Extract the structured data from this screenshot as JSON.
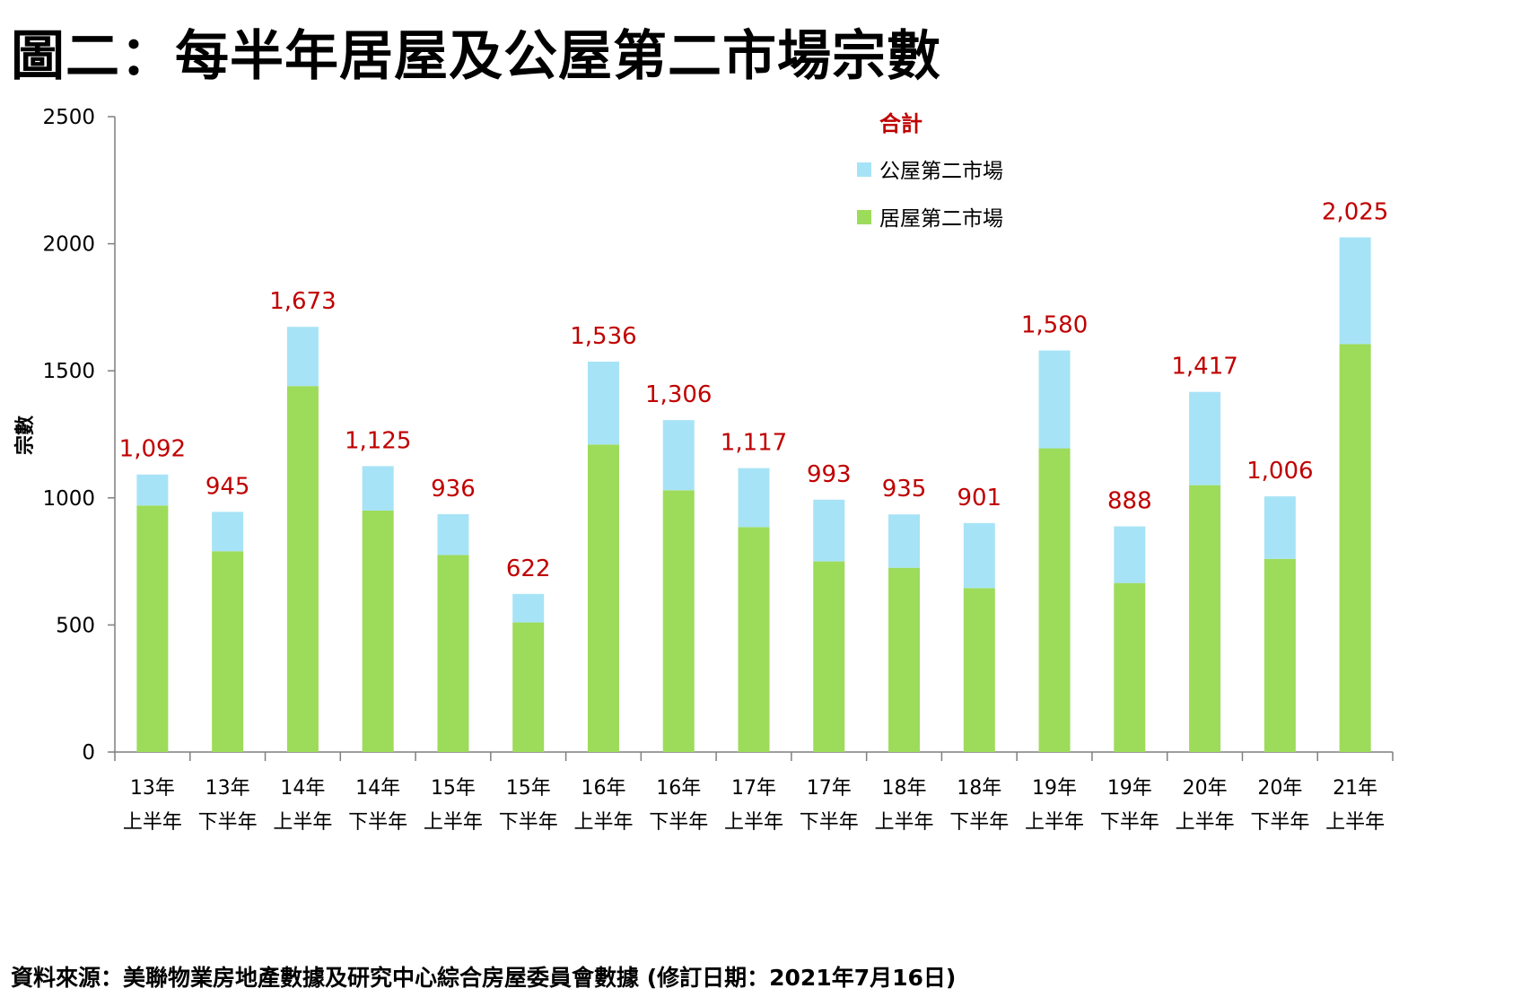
{
  "title": "圖二：每半年居屋及公屋第二市場宗數",
  "source": "資料來源：美聯物業房地產數據及研究中心綜合房屋委員會數據 (修訂日期：2021年7月16日)",
  "colors": {
    "public": "#a7e3f6",
    "hos": "#9ddb5a",
    "total_label": "#c00000",
    "axis": "#7f7f7f"
  },
  "chart_data": {
    "type": "bar",
    "stacked": true,
    "ylabel": "宗數",
    "ylim": [
      0,
      2500
    ],
    "yticks": [
      "0",
      "500",
      "1000",
      "1500",
      "2000",
      "2500"
    ],
    "ytick_values": [
      0,
      500,
      1000,
      1500,
      2000,
      2500
    ],
    "categories": [
      [
        "13年",
        "上半年"
      ],
      [
        "13年",
        "下半年"
      ],
      [
        "14年",
        "上半年"
      ],
      [
        "14年",
        "下半年"
      ],
      [
        "15年",
        "上半年"
      ],
      [
        "15年",
        "下半年"
      ],
      [
        "16年",
        "上半年"
      ],
      [
        "16年",
        "下半年"
      ],
      [
        "17年",
        "上半年"
      ],
      [
        "17年",
        "下半年"
      ],
      [
        "18年",
        "上半年"
      ],
      [
        "18年",
        "下半年"
      ],
      [
        "19年",
        "上半年"
      ],
      [
        "19年",
        "下半年"
      ],
      [
        "20年",
        "上半年"
      ],
      [
        "20年",
        "下半年"
      ],
      [
        "21年",
        "上半年"
      ]
    ],
    "series": [
      {
        "name": "居屋第二市場",
        "values": [
          970,
          790,
          1440,
          950,
          775,
          510,
          1210,
          1030,
          885,
          750,
          725,
          645,
          1195,
          665,
          1050,
          760,
          1605
        ]
      },
      {
        "name": "公屋第二市場",
        "values": [
          122,
          155,
          233,
          175,
          161,
          112,
          326,
          276,
          232,
          243,
          210,
          256,
          385,
          223,
          367,
          246,
          420
        ]
      }
    ],
    "totals_name": "合計",
    "totals": [
      "1,092",
      "945",
      "1,673",
      "1,125",
      "936",
      "622",
      "1,536",
      "1,306",
      "1,117",
      "993",
      "935",
      "901",
      "1,580",
      "888",
      "1,417",
      "1,006",
      "2,025"
    ],
    "totals_values": [
      1092,
      945,
      1673,
      1125,
      936,
      622,
      1536,
      1306,
      1117,
      993,
      935,
      901,
      1580,
      888,
      1417,
      1006,
      2025
    ],
    "legend_position": "top-right",
    "grid": false
  }
}
